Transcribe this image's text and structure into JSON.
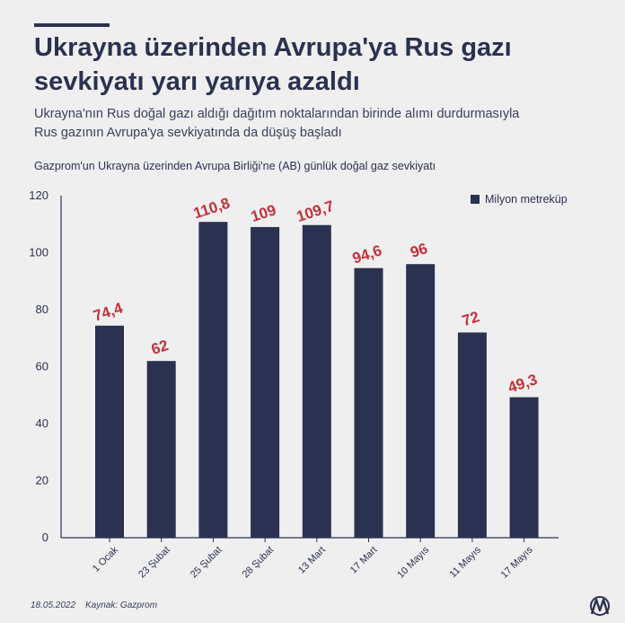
{
  "header": {
    "title_line1": "Ukrayna üzerinden Avrupa'ya Rus gazı",
    "title_line2": "sevkiyatı yarı yarıya azaldı",
    "subtitle_line1": "Ukrayna'nın Rus doğal gazı aldığı dağıtım noktalarından birinde alımı durdurmasıyla",
    "subtitle_line2": "Rus gazının Avrupa'ya sevkiyatında da düşüş başladı"
  },
  "chart_data": {
    "type": "bar",
    "title": "Gazprom'un Ukrayna üzerinden Avrupa Birliği'ne (AB) günlük doğal gaz sevkiyatı",
    "categories": [
      "1 Ocak",
      "23 Şubat",
      "25 Şubat",
      "28 Şubat",
      "13 Mart",
      "17 Mart",
      "10 Mayıs",
      "11 Mayıs",
      "17 Mayıs"
    ],
    "series": [
      {
        "name": "Milyon metreküp",
        "values": [
          74.4,
          62,
          110.8,
          109,
          109.7,
          94.6,
          96,
          72,
          49.3
        ],
        "labels": [
          "74,4",
          "62",
          "110,8",
          "109",
          "109,7",
          "94,6",
          "96",
          "72",
          "49,3"
        ]
      }
    ],
    "ylim": [
      0,
      120
    ],
    "yticks": [
      0,
      20,
      40,
      60,
      80,
      100,
      120
    ],
    "legend_position": "top-right",
    "grid": false,
    "colors": {
      "bar": "#2b3150",
      "value_label": "#c4303a",
      "axis": "#2b3150"
    }
  },
  "footer": {
    "date": "18.05.2022",
    "source": "Kaynak: Gazprom",
    "logo_icon": "aa-logo-icon"
  }
}
